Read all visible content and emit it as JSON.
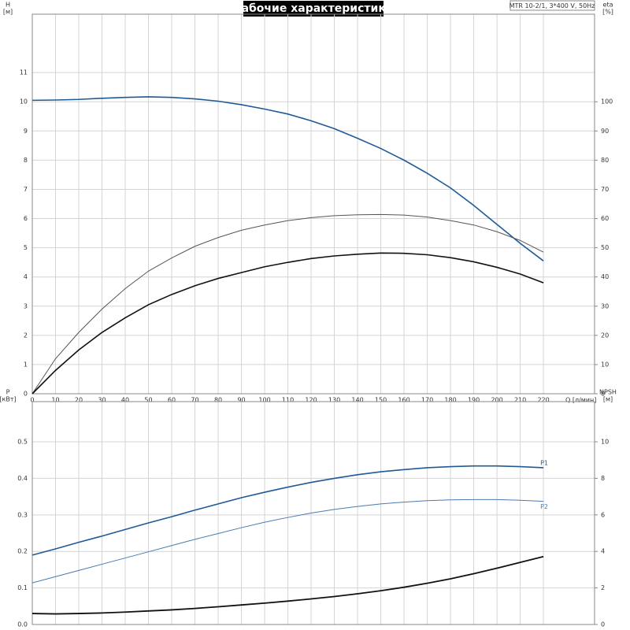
{
  "chart_data": [
    {
      "type": "line",
      "title": "Рабочие характеристики",
      "subtitle": "MTR 10-2/1, 3*400 V, 50Hz",
      "ylabel": "H",
      "yunit": "[м]",
      "y2label": "eta",
      "y2unit": "[%]",
      "xlabel": "Q [л/мин]",
      "x": [
        0,
        10,
        20,
        30,
        40,
        50,
        60,
        70,
        80,
        90,
        100,
        110,
        120,
        130,
        140,
        150,
        160,
        170,
        180,
        190,
        200,
        210,
        220
      ],
      "xlim": [
        0,
        242
      ],
      "xticks": [
        0,
        10,
        20,
        30,
        40,
        50,
        60,
        70,
        80,
        90,
        100,
        110,
        120,
        130,
        140,
        150,
        160,
        170,
        180,
        190,
        200,
        210,
        220
      ],
      "ylim": [
        0,
        13
      ],
      "yticks": [
        0,
        1,
        2,
        3,
        4,
        5,
        6,
        7,
        8,
        9,
        10,
        11
      ],
      "y2lim": [
        0,
        130
      ],
      "y2ticks": [
        0,
        10,
        20,
        30,
        40,
        50,
        60,
        70,
        80,
        90,
        100
      ],
      "grid": true,
      "series": [
        {
          "color": "#1f5a96",
          "values": [
            10.05,
            10.06,
            10.08,
            10.12,
            10.15,
            10.17,
            10.15,
            10.1,
            10.02,
            9.9,
            9.75,
            9.58,
            9.35,
            9.08,
            8.75,
            8.4,
            8.0,
            7.55,
            7.05,
            6.45,
            5.8,
            5.15,
            4.55
          ]
        },
        {
          "color": "#555555",
          "axis": "y2",
          "values": [
            0,
            12,
            21,
            29,
            36,
            42,
            46.5,
            50.5,
            53.5,
            56,
            57.8,
            59.3,
            60.3,
            61,
            61.3,
            61.4,
            61.2,
            60.5,
            59.3,
            57.8,
            55.5,
            52.5,
            48.5
          ]
        },
        {
          "color": "#111111",
          "axis": "y2",
          "values": [
            0,
            8,
            15,
            21,
            26,
            30.5,
            34,
            37,
            39.5,
            41.5,
            43.5,
            45,
            46.3,
            47.2,
            47.8,
            48.2,
            48.1,
            47.6,
            46.6,
            45.2,
            43.3,
            41,
            38
          ]
        }
      ]
    },
    {
      "type": "line",
      "ylabel": "P",
      "yunit": "[кВт]",
      "y2label": "NPSH",
      "y2unit": "[м]",
      "x": [
        0,
        10,
        20,
        30,
        40,
        50,
        60,
        70,
        80,
        90,
        100,
        110,
        120,
        130,
        140,
        150,
        160,
        170,
        180,
        190,
        200,
        210,
        220
      ],
      "xlim": [
        0,
        242
      ],
      "xticks": [
        0,
        10,
        20,
        30,
        40,
        50,
        60,
        70,
        80,
        90,
        100,
        110,
        120,
        130,
        140,
        150,
        160,
        170,
        180,
        190,
        200,
        210,
        220
      ],
      "ylim": [
        0,
        0.61
      ],
      "yticks": [
        {
          "value": 0,
          "label": "0.0"
        },
        0.1,
        0.2,
        0.3,
        0.4,
        0.5
      ],
      "y2lim": [
        0,
        12.2
      ],
      "y2ticks": [
        0,
        2,
        4,
        6,
        8,
        10
      ],
      "grid": true,
      "series": [
        {
          "name": "P1",
          "color": "#1f5a96",
          "values": [
            0.19,
            0.207,
            0.225,
            0.242,
            0.26,
            0.278,
            0.295,
            0.313,
            0.33,
            0.347,
            0.362,
            0.376,
            0.389,
            0.4,
            0.41,
            0.418,
            0.424,
            0.429,
            0.432,
            0.434,
            0.434,
            0.432,
            0.429
          ]
        },
        {
          "name": "P2",
          "color": "#4a7ab0",
          "values": [
            0.114,
            0.131,
            0.148,
            0.165,
            0.182,
            0.199,
            0.216,
            0.233,
            0.249,
            0.265,
            0.28,
            0.293,
            0.305,
            0.315,
            0.323,
            0.33,
            0.335,
            0.339,
            0.341,
            0.342,
            0.342,
            0.34,
            0.337
          ]
        },
        {
          "color": "#111111",
          "axis": "y2",
          "values": [
            0.6,
            0.58,
            0.6,
            0.63,
            0.68,
            0.74,
            0.8,
            0.88,
            0.97,
            1.07,
            1.17,
            1.28,
            1.4,
            1.53,
            1.68,
            1.85,
            2.04,
            2.26,
            2.5,
            2.78,
            3.08,
            3.4,
            3.72
          ]
        }
      ]
    }
  ]
}
